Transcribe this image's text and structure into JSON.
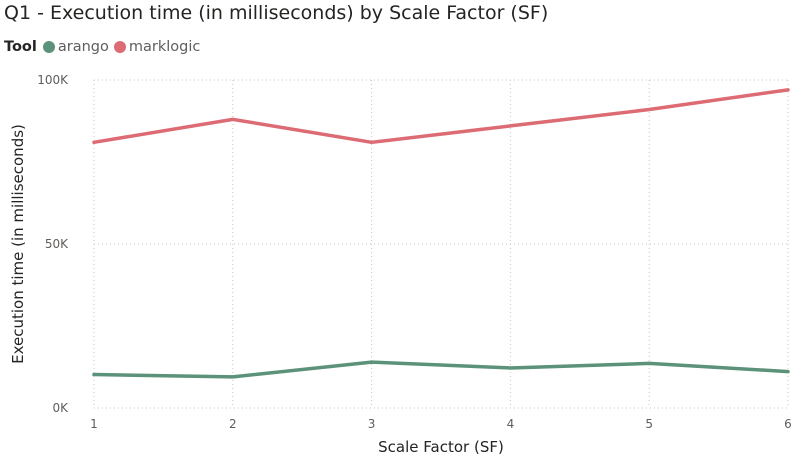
{
  "chart_data": {
    "type": "line",
    "title": "Q1 - Execution time (in milliseconds) by Scale Factor (SF)",
    "legend_title": "Tool",
    "legend_position": "top-left",
    "xlabel": "Scale Factor (SF)",
    "ylabel": "Execution time (in milliseconds)",
    "x": [
      1,
      2,
      3,
      4,
      5,
      6
    ],
    "ylim": [
      0,
      100000
    ],
    "yticks": [
      {
        "value": 0,
        "label": "0K"
      },
      {
        "value": 50000,
        "label": "50K"
      },
      {
        "value": 100000,
        "label": "100K"
      }
    ],
    "grid": true,
    "series": [
      {
        "name": "arango",
        "color": "#5b9279",
        "values": [
          10200,
          9500,
          14000,
          12200,
          13600,
          11100
        ]
      },
      {
        "name": "marklogic",
        "color": "#dd6b74",
        "values": [
          81000,
          88000,
          81000,
          86000,
          91000,
          97000
        ]
      }
    ]
  }
}
